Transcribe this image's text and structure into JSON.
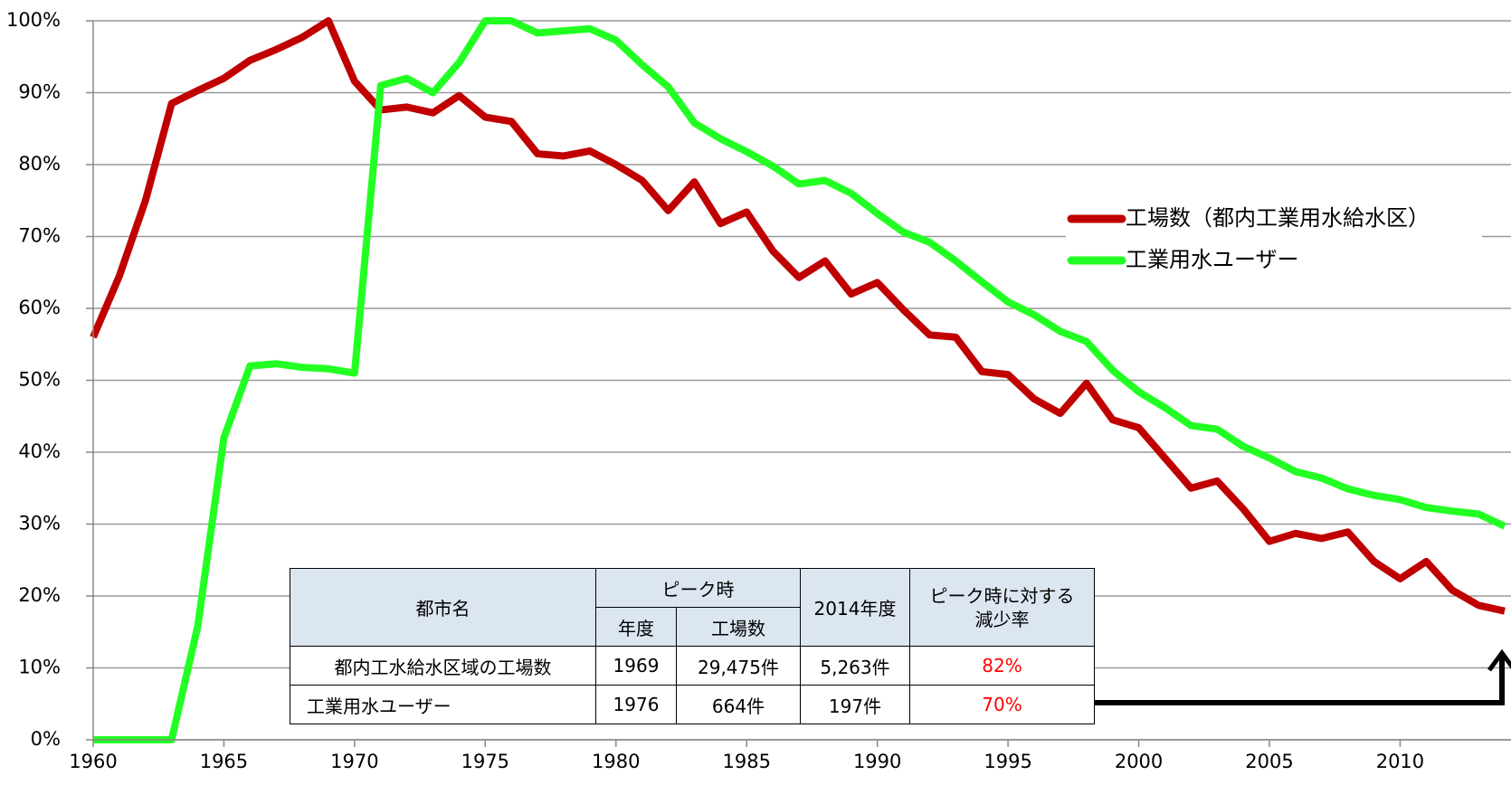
{
  "chart_data": {
    "type": "line",
    "x": [
      1960,
      1961,
      1962,
      1963,
      1964,
      1965,
      1966,
      1967,
      1968,
      1969,
      1970,
      1971,
      1972,
      1973,
      1974,
      1975,
      1976,
      1977,
      1978,
      1979,
      1980,
      1981,
      1982,
      1983,
      1984,
      1985,
      1986,
      1987,
      1988,
      1989,
      1990,
      1991,
      1992,
      1993,
      1994,
      1995,
      1996,
      1997,
      1998,
      1999,
      2000,
      2001,
      2002,
      2003,
      2004,
      2005,
      2006,
      2007,
      2008,
      2009,
      2010,
      2011,
      2012,
      2013,
      2014
    ],
    "series": [
      {
        "name": "工場数（都内工業用水給水区）",
        "color": "#c00000",
        "values": [
          56,
          64.5,
          75,
          88.5,
          90.3,
          92,
          94.5,
          96,
          97.7,
          100,
          91.6,
          87.6,
          88,
          87.2,
          89.6,
          86.6,
          86,
          81.5,
          81.2,
          81.9,
          80,
          77.8,
          73.6,
          77.6,
          71.8,
          73.4,
          68,
          64.3,
          66.6,
          62,
          63.6,
          59.8,
          56.3,
          56,
          51.2,
          50.8,
          47.4,
          45.4,
          49.6,
          44.5,
          43.4,
          39.2,
          35,
          36,
          32.1,
          27.6,
          28.7,
          28,
          28.9,
          24.8,
          22.4,
          24.8,
          20.8,
          18.7,
          17.9
        ]
      },
      {
        "name": "工業用水ユーザー",
        "color": "#22ff22",
        "values": [
          0,
          0,
          0,
          0,
          15.8,
          42,
          52,
          52.3,
          51.8,
          51.6,
          51,
          91,
          92,
          90,
          94.2,
          100,
          100,
          98.3,
          98.6,
          98.9,
          97.3,
          93.9,
          90.8,
          85.8,
          83.6,
          81.8,
          79.8,
          77.3,
          77.8,
          76,
          73.2,
          70.6,
          69.2,
          66.6,
          63.7,
          60.9,
          59.1,
          56.8,
          55.4,
          51.4,
          48.4,
          46.2,
          43.7,
          43.2,
          40.8,
          39.2,
          37.3,
          36.4,
          34.9,
          34,
          33.4,
          32.3,
          31.8,
          31.4,
          29.7
        ]
      }
    ],
    "xlim": [
      1960,
      2014
    ],
    "xticks": [
      1960,
      1965,
      1970,
      1975,
      1980,
      1985,
      1990,
      1995,
      2000,
      2005,
      2010
    ],
    "ylim": [
      0,
      100
    ],
    "yticks": [
      {
        "value": 0,
        "label": "0%"
      },
      {
        "value": 10,
        "label": "10%"
      },
      {
        "value": 20,
        "label": "20%"
      },
      {
        "value": 30,
        "label": "30%"
      },
      {
        "value": 40,
        "label": "40%"
      },
      {
        "value": 50,
        "label": "50%"
      },
      {
        "value": 60,
        "label": "60%"
      },
      {
        "value": 70,
        "label": "70%"
      },
      {
        "value": 80,
        "label": "80%"
      },
      {
        "value": 90,
        "label": "90%"
      },
      {
        "value": 100,
        "label": "100%"
      }
    ],
    "grid": true,
    "legend": "right"
  },
  "table": {
    "header": [
      "都市名",
      "ピーク時",
      "2014年度",
      "ピーク時に対する減少率"
    ],
    "subheader": [
      "年度",
      "工場数"
    ],
    "rows": [
      [
        "都内工水給水区域の工場数",
        "1969",
        "29,475件",
        "5,263件",
        "82%"
      ],
      [
        "工業用水ユーザー",
        "1976",
        "664件",
        "197件",
        "70%"
      ]
    ]
  }
}
